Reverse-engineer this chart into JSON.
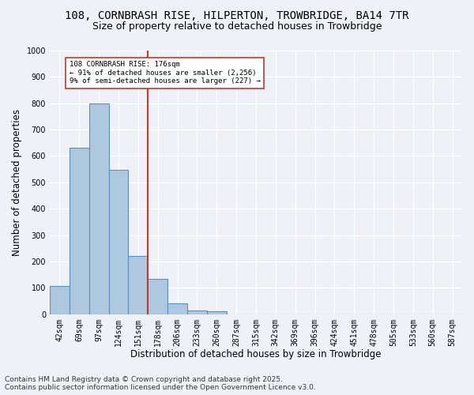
{
  "title_line1": "108, CORNBRASH RISE, HILPERTON, TROWBRIDGE, BA14 7TR",
  "title_line2": "Size of property relative to detached houses in Trowbridge",
  "xlabel": "Distribution of detached houses by size in Trowbridge",
  "ylabel": "Number of detached properties",
  "categories": [
    "42sqm",
    "69sqm",
    "97sqm",
    "124sqm",
    "151sqm",
    "178sqm",
    "206sqm",
    "233sqm",
    "260sqm",
    "287sqm",
    "315sqm",
    "342sqm",
    "369sqm",
    "396sqm",
    "424sqm",
    "451sqm",
    "478sqm",
    "505sqm",
    "533sqm",
    "560sqm",
    "587sqm"
  ],
  "values": [
    108,
    632,
    800,
    548,
    222,
    135,
    42,
    15,
    10,
    0,
    0,
    0,
    0,
    0,
    0,
    0,
    0,
    0,
    0,
    0,
    0
  ],
  "bar_color": "#aec8e0",
  "bar_edge_color": "#5a8fc0",
  "vline_color": "#c0392b",
  "annotation_text": "108 CORNBRASH RISE: 176sqm\n← 91% of detached houses are smaller (2,256)\n9% of semi-detached houses are larger (227) →",
  "annotation_box_color": "#c0392b",
  "ylim": [
    0,
    1000
  ],
  "yticks": [
    0,
    100,
    200,
    300,
    400,
    500,
    600,
    700,
    800,
    900,
    1000
  ],
  "background_color": "#eef2f8",
  "footer_line1": "Contains HM Land Registry data © Crown copyright and database right 2025.",
  "footer_line2": "Contains public sector information licensed under the Open Government Licence v3.0.",
  "title_fontsize": 10,
  "subtitle_fontsize": 9,
  "axis_label_fontsize": 8.5,
  "tick_fontsize": 7,
  "footer_fontsize": 6.5,
  "vline_index": 4.5
}
